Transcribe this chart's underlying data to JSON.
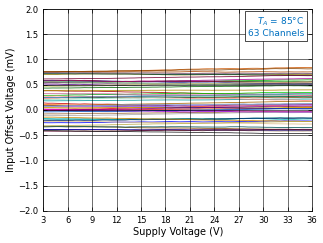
{
  "xlabel": "Supply Voltage (V)",
  "ylabel": "Input Offset Voltage (mV)",
  "annotation_line2": "63 Channels",
  "annotation_color": "#0070C0",
  "xlim": [
    3,
    36
  ],
  "ylim": [
    -2,
    2
  ],
  "xticks": [
    3,
    6,
    9,
    12,
    15,
    18,
    21,
    24,
    27,
    30,
    33,
    36
  ],
  "yticks": [
    -2,
    -1.5,
    -1,
    -0.5,
    0,
    0.5,
    1,
    1.5,
    2
  ],
  "num_channels": 63,
  "x_start": 3,
  "x_end": 36,
  "seed": 42,
  "colors_pool": [
    "#FF0000",
    "#CC0000",
    "#AA0000",
    "#FF4444",
    "#DD2200",
    "#FF6600",
    "#CC5500",
    "#AA4400",
    "#884400",
    "#996633",
    "#663300",
    "#CC9966",
    "#8B4513",
    "#CCAA00",
    "#AA8800",
    "#887700",
    "#006600",
    "#008800",
    "#00AA00",
    "#00CC00",
    "#005555",
    "#007777",
    "#009999",
    "#00BBBB",
    "#0000AA",
    "#0000CC",
    "#0000FF",
    "#2244AA",
    "#550088",
    "#7700BB",
    "#9900DD",
    "#CC00CC",
    "#AA0099",
    "#880077",
    "#334499",
    "#002266",
    "#0055BB",
    "#884400",
    "#AA6600",
    "#CC8800",
    "#004433",
    "#006644",
    "#228855",
    "#550022",
    "#770033",
    "#AA0044",
    "#222222",
    "#444444",
    "#666666",
    "#888888",
    "#AAAAAA",
    "#00AAAA",
    "#FF8888",
    "#88BB88",
    "#7788CC",
    "#DDBB88",
    "#BB88FF",
    "#88AADD",
    "#DDDD88",
    "#FF88BB",
    "#88DDBB",
    "#BBAA44",
    "#664466",
    "#446688"
  ]
}
